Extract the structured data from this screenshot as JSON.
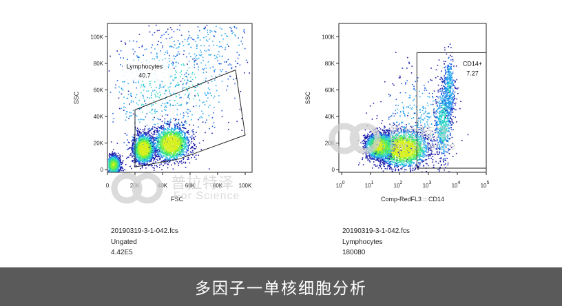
{
  "chart_data": [
    {
      "type": "scatter",
      "subtype": "flow-cytometry-density-dot-plot",
      "title": "",
      "xlabel": "FSC",
      "ylabel": "SSC",
      "x_scale": "linear",
      "y_scale": "linear",
      "xlim": [
        0,
        105000
      ],
      "ylim": [
        -2000,
        110000
      ],
      "x_ticks": [
        0,
        20000,
        40000,
        60000,
        80000,
        100000
      ],
      "x_tick_labels": [
        "0",
        "20K",
        "40K",
        "60K",
        "80K",
        "100K"
      ],
      "y_ticks": [
        0,
        20000,
        40000,
        60000,
        80000,
        100000
      ],
      "y_tick_labels": [
        "0",
        "20K",
        "40K",
        "60K",
        "80K",
        "100K"
      ],
      "color_scale": [
        "#1a1aa8",
        "#1f5fe0",
        "#26a7f0",
        "#33d6c8",
        "#38e08a",
        "#7cf03a",
        "#d6f020"
      ],
      "gate": {
        "shape": "polygon",
        "name": "Lymphocytes",
        "value": "40.7",
        "vertices": [
          [
            20000,
            2000
          ],
          [
            52000,
            8000
          ],
          [
            100000,
            26000
          ],
          [
            93000,
            75000
          ],
          [
            20000,
            45000
          ]
        ]
      },
      "clusters": [
        {
          "x": 4000,
          "y": 4000,
          "sx": 2500,
          "sy": 3500,
          "weight": 0.7
        },
        {
          "x": 26000,
          "y": 16000,
          "sx": 4000,
          "sy": 5500,
          "weight": 0.9
        },
        {
          "x": 46000,
          "y": 20000,
          "sx": 6500,
          "sy": 6500,
          "weight": 1.0
        },
        {
          "x": 55000,
          "y": 65000,
          "sx": 20000,
          "sy": 22000,
          "weight": 0.22
        },
        {
          "x": 30000,
          "y": 55000,
          "sx": 16000,
          "sy": 26000,
          "weight": 0.2
        },
        {
          "x": 75000,
          "y": 95000,
          "sx": 18000,
          "sy": 12000,
          "weight": 0.1
        }
      ],
      "file": "20190319-3-1-042.fcs",
      "population": "Ungated",
      "count": "4.42E5"
    },
    {
      "type": "scatter",
      "subtype": "flow-cytometry-density-dot-plot",
      "title": "",
      "xlabel": "Comp-RedFL3 :: CD14",
      "ylabel": "SSC",
      "x_scale": "log",
      "y_scale": "linear",
      "xlim": [
        0.8,
        100000
      ],
      "ylim": [
        -2000,
        110000
      ],
      "x_ticks": [
        1,
        10,
        100,
        1000,
        10000,
        100000
      ],
      "x_tick_labels": [
        "10^0",
        "10^1",
        "10^2",
        "10^3",
        "10^4",
        "10^5"
      ],
      "y_ticks": [
        0,
        20000,
        40000,
        60000,
        80000,
        100000
      ],
      "y_tick_labels": [
        "0",
        "20K",
        "40K",
        "60K",
        "80K",
        "100K"
      ],
      "color_scale": [
        "#1a1aa8",
        "#1f5fe0",
        "#26a7f0",
        "#33d6c8",
        "#38e08a",
        "#7cf03a",
        "#d6f020"
      ],
      "gate": {
        "shape": "rectangle",
        "name": "CD14+",
        "value": "7.27",
        "x_range": [
          400,
          100000
        ],
        "y_range": [
          0,
          88000
        ]
      },
      "clusters": [
        {
          "x": 1.3,
          "y": 18000,
          "sx": 0.25,
          "sy": 5000,
          "weight": 0.8
        },
        {
          "x": 2.1,
          "y": 16000,
          "sx": 0.45,
          "sy": 7000,
          "weight": 1.0
        },
        {
          "x": 2.6,
          "y": 40000,
          "sx": 0.6,
          "sy": 16000,
          "weight": 0.15
        },
        {
          "x": 3.5,
          "y": 35000,
          "sx": 0.15,
          "sy": 14000,
          "weight": 0.3
        },
        {
          "x": 3.7,
          "y": 62000,
          "sx": 0.1,
          "sy": 12000,
          "weight": 0.18
        }
      ],
      "file": "20190319-3-1-042.fcs",
      "population": "Lymphocytes",
      "count": "180080"
    }
  ],
  "watermark": {
    "left": {
      "cn": "普拉特泽",
      "en": "For Science"
    },
    "right": {
      "cn": "普拉特泽",
      "en": "For Science"
    }
  },
  "caption": "多因子一单核细胞分析"
}
